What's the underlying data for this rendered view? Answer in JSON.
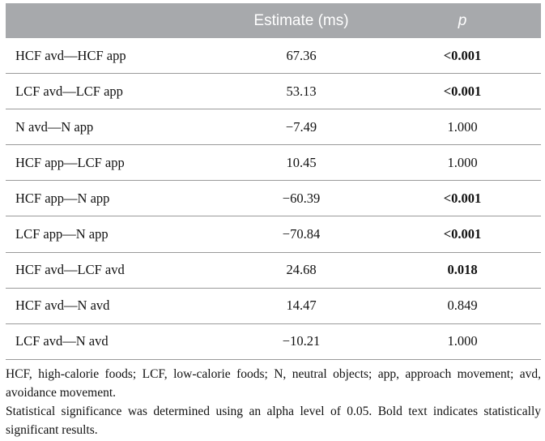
{
  "header": {
    "col1": "",
    "col2": "Estimate (ms)",
    "col3": "p"
  },
  "rows": [
    {
      "comparison": "HCF avd—HCF app",
      "estimate": "67.36",
      "p": "<0.001",
      "significant": true
    },
    {
      "comparison": "LCF avd—LCF app",
      "estimate": "53.13",
      "p": "<0.001",
      "significant": true
    },
    {
      "comparison": "N avd—N app",
      "estimate": "−7.49",
      "p": "1.000",
      "significant": false
    },
    {
      "comparison": "HCF app—LCF app",
      "estimate": "10.45",
      "p": "1.000",
      "significant": false
    },
    {
      "comparison": "HCF app—N app",
      "estimate": "−60.39",
      "p": "<0.001",
      "significant": true
    },
    {
      "comparison": "LCF app—N app",
      "estimate": "−70.84",
      "p": "<0.001",
      "significant": true
    },
    {
      "comparison": "HCF avd—LCF avd",
      "estimate": "24.68",
      "p": "0.018",
      "significant": true
    },
    {
      "comparison": "HCF avd—N avd",
      "estimate": "14.47",
      "p": "0.849",
      "significant": false
    },
    {
      "comparison": "LCF avd—N avd",
      "estimate": "−10.21",
      "p": "1.000",
      "significant": false
    }
  ],
  "footnotes": {
    "abbreviations": "HCF, high-calorie foods; LCF, low-calorie foods; N, neutral objects; app, approach movement; avd, avoidance movement.",
    "significance": "Statistical significance was determined using an alpha level of 0.05. Bold text indicates statistically significant results."
  }
}
